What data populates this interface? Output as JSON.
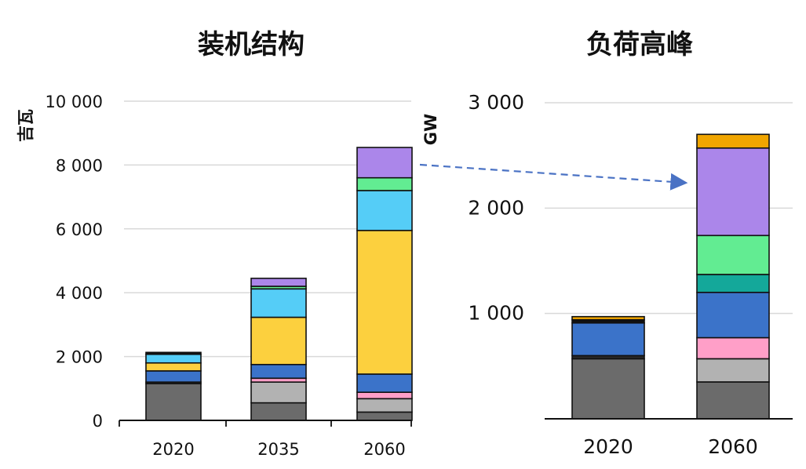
{
  "chart_data": [
    {
      "type": "bar",
      "stacked": true,
      "title": "装机结构",
      "ylabel": "吉瓦",
      "ylim": [
        0,
        10000
      ],
      "yticks": [
        {
          "value": 0,
          "label": "0"
        },
        {
          "value": 2000,
          "label": "2 000"
        },
        {
          "value": 4000,
          "label": "4 000"
        },
        {
          "value": 6000,
          "label": "6 000"
        },
        {
          "value": 8000,
          "label": "8 000"
        },
        {
          "value": 10000,
          "label": "10 000"
        }
      ],
      "grid": true,
      "categories": [
        "2020",
        "2035",
        "2060"
      ],
      "stacks": [
        [
          {
            "value": 1150,
            "color": "#6b6b6b"
          },
          {
            "value": 50,
            "color": "#2a2a2a"
          },
          {
            "value": 350,
            "color": "#3b73c9"
          },
          {
            "value": 250,
            "color": "#fcd03e"
          },
          {
            "value": 270,
            "color": "#55cdf7"
          },
          {
            "value": 60,
            "color": "#111111"
          }
        ],
        [
          {
            "value": 550,
            "color": "#6b6b6b"
          },
          {
            "value": 650,
            "color": "#b2b2b2"
          },
          {
            "value": 120,
            "color": "#ff9fc8"
          },
          {
            "value": 430,
            "color": "#3b73c9"
          },
          {
            "value": 1480,
            "color": "#fcd03e"
          },
          {
            "value": 890,
            "color": "#55cdf7"
          },
          {
            "value": 80,
            "color": "#62ec92"
          },
          {
            "value": 250,
            "color": "#ab86ea"
          }
        ],
        [
          {
            "value": 260,
            "color": "#6b6b6b"
          },
          {
            "value": 420,
            "color": "#b2b2b2"
          },
          {
            "value": 200,
            "color": "#ff9fc8"
          },
          {
            "value": 570,
            "color": "#3b73c9"
          },
          {
            "value": 4500,
            "color": "#fcd03e"
          },
          {
            "value": 1250,
            "color": "#55cdf7"
          },
          {
            "value": 400,
            "color": "#62ec92"
          },
          {
            "value": 950,
            "color": "#ab86ea"
          }
        ]
      ]
    },
    {
      "type": "bar",
      "stacked": true,
      "title": "负荷高峰",
      "ylabel": "GW",
      "ylim": [
        0,
        3000
      ],
      "yticks": [
        {
          "value": 1000,
          "label": "1 000"
        },
        {
          "value": 2000,
          "label": "2 000"
        },
        {
          "value": 3000,
          "label": "3 000"
        }
      ],
      "grid": true,
      "categories": [
        "2020",
        "2060"
      ],
      "stacks": [
        [
          {
            "value": 570,
            "color": "#6b6b6b"
          },
          {
            "value": 30,
            "color": "#2a2a2a"
          },
          {
            "value": 310,
            "color": "#3b73c9"
          },
          {
            "value": 30,
            "color": "#111111"
          },
          {
            "value": 30,
            "color": "#f0a500"
          }
        ],
        [
          {
            "value": 350,
            "color": "#6b6b6b"
          },
          {
            "value": 220,
            "color": "#b2b2b2"
          },
          {
            "value": 200,
            "color": "#ff9fc8"
          },
          {
            "value": 430,
            "color": "#3b73c9"
          },
          {
            "value": 170,
            "color": "#14a89a"
          },
          {
            "value": 370,
            "color": "#62ec92"
          },
          {
            "value": 830,
            "color": "#ab86ea"
          },
          {
            "value": 130,
            "color": "#f0a500"
          }
        ]
      ]
    }
  ],
  "arrow_color": "#4a72c4"
}
